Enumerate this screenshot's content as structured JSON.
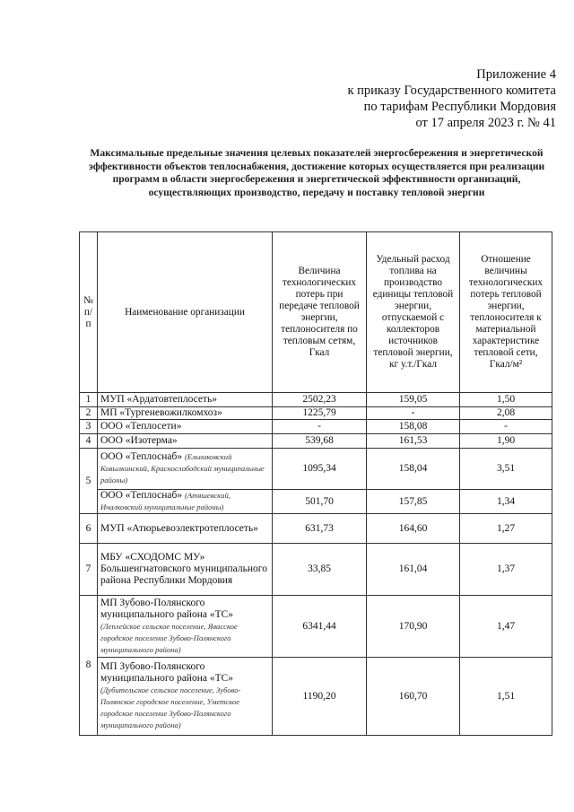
{
  "appendix": {
    "line1": "Приложение 4",
    "line2": "к приказу Государственного комитета",
    "line3": "по тарифам Республики Мордовия",
    "line4": "от 17 апреля 2023 г. № 41"
  },
  "title": "Максимальные предельные значения целевых показателей энергосбережения и энергетической эффективности объектов теплоснабжения, достижение которых осуществляется при реализации программ в области энергосбережения и энергетической эффективности организаций, осуществляющих производство, передачу и поставку тепловой энергии",
  "table": {
    "headers": [
      "№ п/п",
      "Наименование организации",
      "Величина технологических потерь при передаче тепловой энергии, теплоносителя по тепловым сетям, Гкал",
      "Удельный расход топлива на производство единицы тепловой энергии, отпускаемой с коллекторов источников тепловой энергии, кг у.т./Гкал",
      "Отношение величины технологических потерь тепловой энергии, теплоносителя к материальной характеристике тепловой сети, Гкал/м²"
    ],
    "rows": [
      {
        "no": "1",
        "name": "МУП «Ардатовтеплосеть»",
        "note": "",
        "loss": "2502,23",
        "fuel": "159,05",
        "ratio": "1,50"
      },
      {
        "no": "2",
        "name": "МП «Тургеневожилкомхоз»",
        "note": "",
        "loss": "1225,79",
        "fuel": "-",
        "ratio": "2,08"
      },
      {
        "no": "3",
        "name": "ООО «Теплосети»",
        "note": "",
        "loss": "-",
        "fuel": "158,08",
        "ratio": "-"
      },
      {
        "no": "4",
        "name": "ООО «Изотерма»",
        "note": "",
        "loss": "539,68",
        "fuel": "161,53",
        "ratio": "1,90"
      },
      {
        "no": "5",
        "name": "ООО «Теплоснаб»",
        "note": "(Ельниковский Ковылкинский, Краснослободский муниципальные районы)",
        "loss": "1095,34",
        "fuel": "158,04",
        "ratio": "3,51"
      },
      {
        "no": "",
        "name": "ООО «Теплоснаб»",
        "note": "(Атяшевский, Ичалковский муниципальные районы)",
        "loss": "501,70",
        "fuel": "157,85",
        "ratio": "1,34"
      },
      {
        "no": "6",
        "name": "МУП «Атюрьевоэлектротеплосеть»",
        "note": "",
        "loss": "631,73",
        "fuel": "164,60",
        "ratio": "1,27"
      },
      {
        "no": "7",
        "name": "МБУ «СХОДОМС МУ» Большеигнатовского муниципального района Республики Мордовия",
        "note": "",
        "loss": "33,85",
        "fuel": "161,04",
        "ratio": "1,37"
      },
      {
        "no": "8",
        "name": "МП Зубово-Полянского муниципального района «ТС»",
        "note": "(Леплейское сельское поселение, Явасское городское поселение Зубово-Полянского муниципального района)",
        "loss": "6341,44",
        "fuel": "170,90",
        "ratio": "1,47"
      },
      {
        "no": "",
        "name": "МП Зубово-Полянского муниципального района «ТС»",
        "note": "(Дубительское сельское поселение, Зубово-Полянское городское поселение, Уметское городское поселение Зубово-Полянского муниципального района)",
        "loss": "1190,20",
        "fuel": "160,70",
        "ratio": "1,51"
      }
    ]
  }
}
